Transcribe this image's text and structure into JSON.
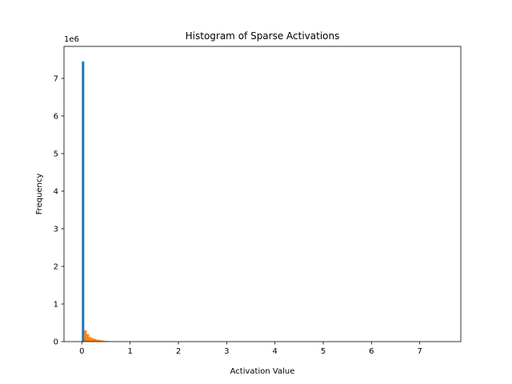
{
  "chart_data": {
    "type": "bar",
    "title": "Histogram of Sparse Activations",
    "xlabel": "Activation Value",
    "ylabel": "Frequency",
    "y_offset_text": "1e6",
    "xlim": [
      -0.37,
      7.85
    ],
    "ylim": [
      0,
      7.85
    ],
    "x_ticks": [
      0,
      1,
      2,
      3,
      4,
      5,
      6,
      7
    ],
    "y_ticks": [
      0,
      1,
      2,
      3,
      4,
      5,
      6,
      7
    ],
    "grid": false,
    "legend": "none",
    "bin_width": 0.05,
    "colors": [
      "#1f77b4",
      "#ff7f0e"
    ],
    "series": [
      {
        "color": "#1f77b4",
        "bin_starts": [
          0.0,
          0.05,
          0.1,
          0.15,
          0.2,
          0.25,
          0.3,
          0.35,
          0.4,
          0.45,
          0.5,
          0.55
        ],
        "values": [
          7.45,
          0.1,
          0.07,
          0.05,
          0.04,
          0.035,
          0.03,
          0.025,
          0.02,
          0.015,
          0.012,
          0.01
        ]
      },
      {
        "color": "#ff7f0e",
        "bin_starts": [
          0.05,
          0.1,
          0.15,
          0.2,
          0.25,
          0.3,
          0.35,
          0.4,
          0.45
        ],
        "values": [
          0.3,
          0.2,
          0.12,
          0.09,
          0.07,
          0.05,
          0.04,
          0.03,
          0.02
        ]
      }
    ]
  }
}
